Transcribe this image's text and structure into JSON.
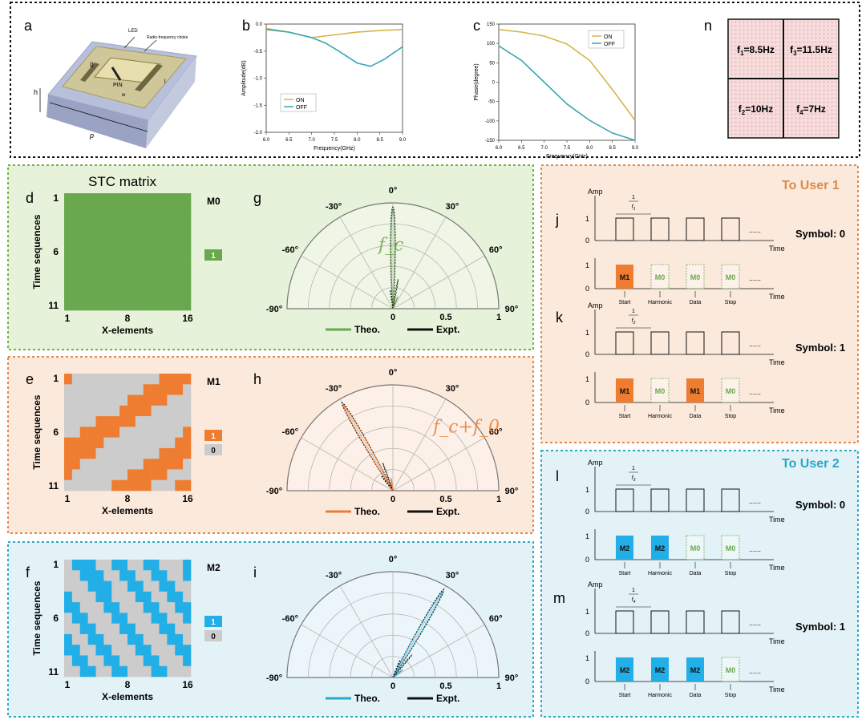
{
  "panel_letters": {
    "a": "a",
    "b": "b",
    "c": "c",
    "n": "n",
    "d": "d",
    "e": "e",
    "f": "f",
    "g": "g",
    "h": "h",
    "i": "i",
    "j": "j",
    "k": "k",
    "l": "l",
    "m": "m"
  },
  "colors": {
    "green_bg": "#e6f2d9",
    "green_border": "#6fb53f",
    "green_cell": "#6aa84f",
    "orange_bg": "#fbe9dc",
    "orange_border": "#e0894a",
    "orange_cell": "#ef7d31",
    "blue_bg": "#e2f2f7",
    "blue_border": "#2aa7c9",
    "blue_cell": "#22aee6",
    "gray_cell": "#cccccc",
    "on_line": "#d6b54a",
    "off_line": "#3ba6b5",
    "sym_pink": "#f6dcdc",
    "theo_blue": "#2aa7c9"
  },
  "panel_a": {
    "labels": {
      "led": "LED",
      "choke": "Radio-frequency choke",
      "pin": "PIN",
      "h": "h",
      "p": "p",
      "l": "l",
      "w": "w",
      "II": "II"
    }
  },
  "chart_data": [
    {
      "id": "b",
      "type": "line",
      "xlabel": "Frequency(GHz)",
      "ylabel": "Amplitude(dB)",
      "xlim": [
        6.0,
        9.0
      ],
      "ylim": [
        -2.0,
        0.0
      ],
      "xticks": [
        "6.0",
        "6.5",
        "7.0",
        "7.5",
        "8.0",
        "8.5",
        "9.0"
      ],
      "yticks": [
        "0.0",
        "-0.5",
        "-1.0",
        "-1.5",
        "-2.0"
      ],
      "legend": "bottom-left",
      "series": [
        {
          "name": "ON",
          "x": [
            6.0,
            6.5,
            7.0,
            7.5,
            8.0,
            8.5,
            9.0
          ],
          "y": [
            -0.08,
            -0.15,
            -0.25,
            -0.2,
            -0.15,
            -0.12,
            -0.1
          ]
        },
        {
          "name": "OFF",
          "x": [
            6.0,
            6.5,
            7.0,
            7.3,
            7.6,
            8.0,
            8.3,
            8.6,
            9.0
          ],
          "y": [
            -0.1,
            -0.15,
            -0.25,
            -0.35,
            -0.5,
            -0.72,
            -0.78,
            -0.65,
            -0.42
          ]
        }
      ]
    },
    {
      "id": "c",
      "type": "line",
      "xlabel": "Frequency(GHz)",
      "ylabel": "Phase(degree)",
      "xlim": [
        6.0,
        9.0
      ],
      "ylim": [
        -160,
        160
      ],
      "xticks": [
        "6.0",
        "6.5",
        "7.0",
        "7.5",
        "8.0",
        "8.5",
        "9.0"
      ],
      "yticks": [
        "150",
        "100",
        "50",
        "0",
        "-50",
        "-100",
        "-150"
      ],
      "legend": "top-right",
      "series": [
        {
          "name": "ON",
          "x": [
            6.0,
            6.5,
            7.0,
            7.5,
            8.0,
            8.5,
            9.0
          ],
          "y": [
            145,
            138,
            127,
            105,
            60,
            -20,
            -105
          ]
        },
        {
          "name": "OFF",
          "x": [
            6.0,
            6.5,
            7.0,
            7.5,
            8.0,
            8.5,
            9.0
          ],
          "y": [
            100,
            60,
            0,
            -60,
            -105,
            -140,
            -160
          ]
        }
      ]
    },
    {
      "id": "d",
      "type": "heatmap",
      "title": "STC matrix",
      "name": "M0",
      "xlabel": "X-elements",
      "ylabel": "Time sequences",
      "xticks": [
        "1",
        "8",
        "16"
      ],
      "yticks": [
        "1",
        "6",
        "11"
      ],
      "legend": [
        "1"
      ],
      "rows": [
        "1111111111111111",
        "1111111111111111",
        "1111111111111111",
        "1111111111111111",
        "1111111111111111",
        "1111111111111111",
        "1111111111111111",
        "1111111111111111",
        "1111111111111111",
        "1111111111111111",
        "1111111111111111"
      ]
    },
    {
      "id": "e",
      "type": "heatmap",
      "name": "M1",
      "xlabel": "X-elements",
      "ylabel": "Time sequences",
      "xticks": [
        "1",
        "8",
        "16"
      ],
      "yticks": [
        "1",
        "6",
        "11"
      ],
      "legend": [
        "1",
        "0"
      ],
      "rows": [
        "1000000000001111",
        "0000000000111110",
        "0000000011111000",
        "0000000111100000",
        "0000111110000000",
        "0011111000000001",
        "1111100000000011",
        "1111000000001111",
        "1100000000111110",
        "1000000011111000",
        "0000001111100011"
      ]
    },
    {
      "id": "f",
      "type": "heatmap",
      "name": "M2",
      "xlabel": "X-elements",
      "ylabel": "Time sequences",
      "xticks": [
        "1",
        "8",
        "16"
      ],
      "yticks": [
        "1",
        "6",
        "11"
      ],
      "legend": [
        "1",
        "0"
      ],
      "rows": [
        "0111001100110001",
        "0011100110011001",
        "0001110011001100",
        "1000110001100110",
        "1100011000110011",
        "0110001100011001",
        "0011000110001100",
        "1001100011000110",
        "1100110001100011",
        "0110011000110001",
        "0011001100011000"
      ]
    },
    {
      "id": "g",
      "type": "polar",
      "label": "f_c",
      "angle_ticks": [
        "-90°",
        "-60°",
        "-30°",
        "0°",
        "30°",
        "60°",
        "90°"
      ],
      "radial_ticks": [
        "0",
        "0.5",
        "1"
      ],
      "legend": [
        "Theo.",
        "Expt."
      ],
      "main_beam_deg": 0
    },
    {
      "id": "h",
      "type": "polar",
      "label": "f_c+f_0",
      "angle_ticks": [
        "-90°",
        "-60°",
        "-30°",
        "0°",
        "30°",
        "60°",
        "90°"
      ],
      "radial_ticks": [
        "0",
        "0.5",
        "1"
      ],
      "legend": [
        "Theo.",
        "Expt."
      ],
      "main_beam_deg": -30
    },
    {
      "id": "i",
      "type": "polar",
      "angle_ticks": [
        "-90°",
        "-60°",
        "-30°",
        "0°",
        "30°",
        "60°",
        "90°"
      ],
      "radial_ticks": [
        "0",
        "0.5",
        "1"
      ],
      "legend": [
        "Theo.",
        "Expt."
      ],
      "main_beam_deg": 30
    }
  ],
  "panel_n": {
    "cells": [
      {
        "sym": "f",
        "sub": "1",
        "val": "=8.5Hz"
      },
      {
        "sym": "f",
        "sub": "3",
        "val": "=11.5Hz"
      },
      {
        "sym": "f",
        "sub": "2",
        "val": "=10Hz"
      },
      {
        "sym": "f",
        "sub": "4",
        "val": "=7Hz"
      }
    ]
  },
  "timing": {
    "user1_title": "To User 1",
    "user2_title": "To User 2",
    "amp": "Amp",
    "time": "Time",
    "one": "1",
    "zero": "0",
    "slots": [
      "Start",
      "Harmonic",
      "Data",
      "Stop"
    ],
    "ellipsis": "......",
    "frac_num": "1",
    "j": {
      "symbol": "Symbol: 0",
      "frac_sub": "1",
      "boxes": [
        "M1",
        "M0",
        "M0",
        "M0"
      ]
    },
    "k": {
      "symbol": "Symbol: 1",
      "frac_sub": "2",
      "boxes": [
        "M1",
        "M0",
        "M1",
        "M0"
      ]
    },
    "l": {
      "symbol": "Symbol: 0",
      "frac_sub": "3",
      "boxes": [
        "M2",
        "M2",
        "M0",
        "M0"
      ]
    },
    "m": {
      "symbol": "Symbol: 1",
      "frac_sub": "4",
      "boxes": [
        "M2",
        "M2",
        "M2",
        "M0"
      ]
    }
  }
}
